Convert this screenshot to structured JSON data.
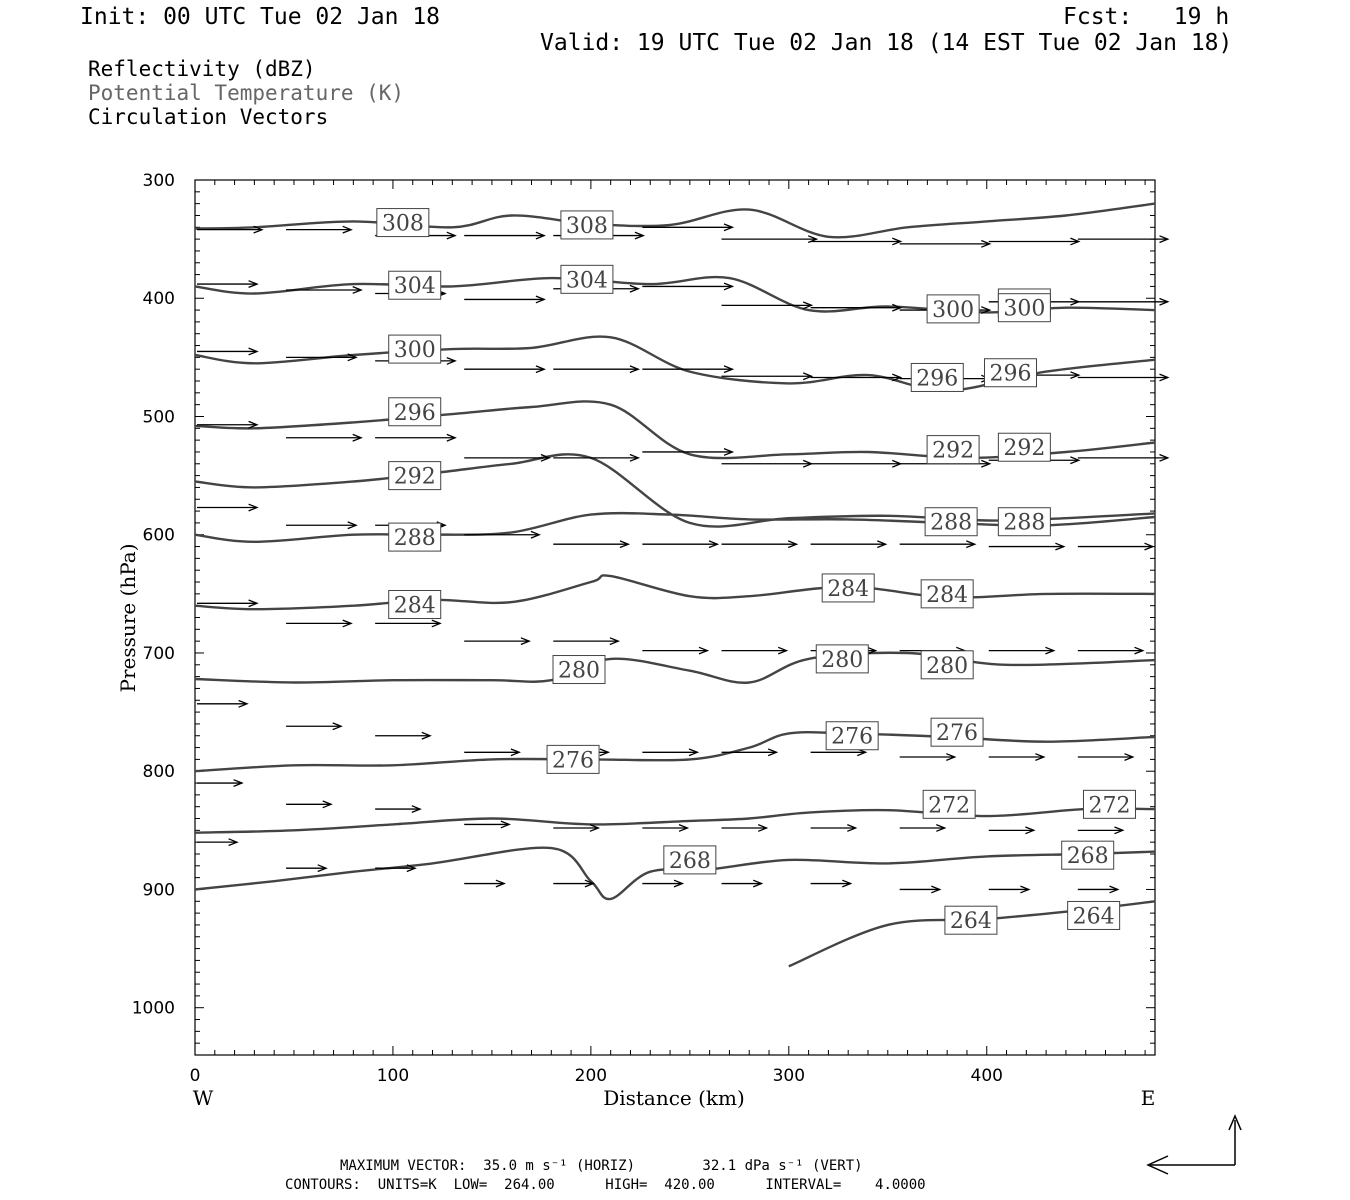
{
  "header": {
    "init": "Init: 00 UTC Tue 02 Jan 18",
    "fcst": "Fcst:   19 h",
    "valid": "Valid: 19 UTC Tue 02 Jan 18 (14 EST Tue 02 Jan 18)"
  },
  "legend": [
    {
      "label": "Reflectivity (dBZ)",
      "color": "#000000"
    },
    {
      "label": "Potential Temperature (K)",
      "color": "#666666"
    },
    {
      "label": "Circulation Vectors",
      "color": "#000000"
    }
  ],
  "footer": {
    "line1": "MAXIMUM VECTOR:  35.0 m s⁻¹ (HORIZ)        32.1 dPa s⁻¹ (VERT)",
    "line2": "CONTOURS:  UNITS=K  LOW=  264.00      HIGH=  420.00      INTERVAL=    4.0000"
  },
  "chart_data": {
    "type": "cross-section",
    "xlabel": "Distance (km)",
    "ylabel": "Pressure (hPa)",
    "xlim": [
      0,
      485
    ],
    "ylim": [
      1040,
      300
    ],
    "x_ticks": [
      0,
      100,
      200,
      300,
      400
    ],
    "y_ticks": [
      300,
      400,
      500,
      600,
      700,
      800,
      900,
      1000
    ],
    "x_end_labels": {
      "left": "W",
      "right": "E"
    },
    "contour_color": "#444444",
    "isentropes": [
      {
        "theta": 308,
        "x": [
          0,
          30,
          80,
          130,
          160,
          200,
          240,
          280,
          320,
          360,
          400,
          440,
          485
        ],
        "p": [
          341,
          340,
          335,
          340,
          330,
          337,
          338,
          325,
          348,
          340,
          335,
          330,
          320
        ],
        "labels": [
          [
            105,
            336
          ],
          [
            198,
            338
          ]
        ]
      },
      {
        "theta": 304,
        "x": [
          0,
          30,
          80,
          130,
          180,
          230,
          270,
          310,
          350,
          400,
          440,
          485
        ],
        "p": [
          390,
          396,
          388,
          390,
          383,
          388,
          383,
          410,
          407,
          412,
          408,
          410
        ],
        "labels": [
          [
            111,
            389
          ],
          [
            198,
            384
          ],
          [
            419,
            404
          ]
        ]
      },
      {
        "theta": 300,
        "x": [
          0,
          30,
          80,
          130,
          170,
          210,
          250,
          300,
          340,
          380,
          430,
          485
        ],
        "p": [
          448,
          455,
          448,
          443,
          442,
          433,
          462,
          472,
          465,
          478,
          462,
          452
        ],
        "labels": [
          [
            111,
            443
          ],
          [
            383,
            409
          ],
          [
            419,
            408
          ]
        ]
      },
      {
        "theta": 296,
        "x": [
          0,
          30,
          80,
          130,
          170,
          210,
          250,
          300,
          340,
          390,
          440,
          485
        ],
        "p": [
          508,
          510,
          505,
          498,
          492,
          490,
          532,
          532,
          530,
          535,
          530,
          522
        ],
        "labels": [
          [
            111,
            496
          ],
          [
            375,
            467
          ],
          [
            412,
            463
          ]
        ]
      },
      {
        "theta": 292,
        "x": [
          0,
          30,
          80,
          120,
          160,
          200,
          250,
          300,
          350,
          400,
          440,
          485
        ],
        "p": [
          555,
          560,
          555,
          548,
          540,
          535,
          590,
          586,
          584,
          588,
          586,
          582
        ],
        "labels": [
          [
            111,
            550
          ],
          [
            383,
            528
          ],
          [
            419,
            526
          ]
        ]
      },
      {
        "theta": 288,
        "x": [
          0,
          30,
          80,
          120,
          160,
          200,
          240,
          280,
          330,
          380,
          430,
          485
        ],
        "p": [
          600,
          606,
          600,
          600,
          598,
          583,
          583,
          587,
          587,
          590,
          592,
          585
        ],
        "labels": [
          [
            111,
            602
          ],
          [
            382,
            589
          ],
          [
            419,
            589
          ]
        ]
      },
      {
        "theta": 284,
        "x": [
          0,
          30,
          80,
          120,
          160,
          200,
          210,
          250,
          280,
          330,
          380,
          430,
          485
        ],
        "p": [
          660,
          663,
          660,
          655,
          657,
          640,
          635,
          652,
          652,
          644,
          653,
          650,
          650
        ],
        "labels": [
          [
            111,
            659
          ],
          [
            330,
            645
          ],
          [
            380,
            650
          ]
        ]
      },
      {
        "theta": 280,
        "x": [
          0,
          50,
          100,
          150,
          180,
          210,
          250,
          280,
          310,
          360,
          410,
          485
        ],
        "p": [
          722,
          725,
          723,
          723,
          723,
          705,
          715,
          725,
          705,
          700,
          710,
          706
        ],
        "labels": [
          [
            194,
            714
          ],
          [
            327,
            705
          ],
          [
            380,
            710
          ]
        ]
      },
      {
        "theta": 276,
        "x": [
          0,
          50,
          100,
          150,
          200,
          250,
          280,
          300,
          330,
          380,
          430,
          485
        ],
        "p": [
          800,
          795,
          795,
          790,
          790,
          790,
          780,
          768,
          768,
          771,
          775,
          771
        ],
        "labels": [
          [
            191,
            790
          ],
          [
            332,
            770
          ],
          [
            385,
            767
          ]
        ]
      },
      {
        "theta": 272,
        "x": [
          0,
          50,
          100,
          150,
          200,
          250,
          280,
          310,
          350,
          400,
          450,
          485
        ],
        "p": [
          852,
          850,
          845,
          840,
          845,
          842,
          840,
          835,
          833,
          838,
          832,
          832
        ],
        "labels": [
          [
            381,
            828
          ],
          [
            462,
            828
          ]
        ]
      },
      {
        "theta": 268,
        "x": [
          0,
          40,
          80,
          120,
          180,
          200,
          210,
          230,
          260,
          300,
          350,
          400,
          450,
          485
        ],
        "p": [
          900,
          893,
          885,
          878,
          865,
          893,
          908,
          885,
          883,
          875,
          878,
          872,
          870,
          868
        ],
        "labels": [
          [
            250,
            875
          ],
          [
            451,
            871
          ]
        ]
      },
      {
        "theta": 264,
        "x": [
          300,
          350,
          400,
          450,
          485
        ],
        "p": [
          965,
          930,
          925,
          917,
          910
        ],
        "labels": [
          [
            392,
            926
          ],
          [
            454,
            922
          ]
        ]
      }
    ],
    "vectors": [
      {
        "x": 0,
        "p": 342,
        "u": 26,
        "w": 0
      },
      {
        "x": 45,
        "p": 342,
        "u": 26,
        "w": 0
      },
      {
        "x": 90,
        "p": 347,
        "u": 32,
        "w": 0
      },
      {
        "x": 135,
        "p": 347,
        "u": 32,
        "w": 0
      },
      {
        "x": 180,
        "p": 347,
        "u": 36,
        "w": 0
      },
      {
        "x": 225,
        "p": 340,
        "u": 36,
        "w": 0
      },
      {
        "x": 265,
        "p": 350,
        "u": 38,
        "w": 0
      },
      {
        "x": 310,
        "p": 352,
        "u": 36,
        "w": 0
      },
      {
        "x": 355,
        "p": 354,
        "u": 36,
        "w": 0
      },
      {
        "x": 400,
        "p": 352,
        "u": 36,
        "w": 0
      },
      {
        "x": 445,
        "p": 350,
        "u": 36,
        "w": 0
      },
      {
        "x": 0,
        "p": 388,
        "u": 24,
        "w": 0
      },
      {
        "x": 45,
        "p": 393,
        "u": 30,
        "w": 0
      },
      {
        "x": 90,
        "p": 396,
        "u": 28,
        "w": 0
      },
      {
        "x": 135,
        "p": 401,
        "u": 32,
        "w": 0
      },
      {
        "x": 180,
        "p": 392,
        "u": 34,
        "w": 0
      },
      {
        "x": 225,
        "p": 390,
        "u": 36,
        "w": 0
      },
      {
        "x": 265,
        "p": 406,
        "u": 36,
        "w": 0
      },
      {
        "x": 310,
        "p": 408,
        "u": 36,
        "w": 0
      },
      {
        "x": 355,
        "p": 410,
        "u": 36,
        "w": 0
      },
      {
        "x": 400,
        "p": 403,
        "u": 36,
        "w": 0
      },
      {
        "x": 445,
        "p": 403,
        "u": 36,
        "w": 0
      },
      {
        "x": 0,
        "p": 445,
        "u": 24,
        "w": 0
      },
      {
        "x": 45,
        "p": 450,
        "u": 28,
        "w": 0
      },
      {
        "x": 90,
        "p": 453,
        "u": 32,
        "w": 0
      },
      {
        "x": 135,
        "p": 460,
        "u": 32,
        "w": 0
      },
      {
        "x": 180,
        "p": 460,
        "u": 34,
        "w": 0
      },
      {
        "x": 225,
        "p": 460,
        "u": 36,
        "w": 0
      },
      {
        "x": 265,
        "p": 466,
        "u": 36,
        "w": 0
      },
      {
        "x": 310,
        "p": 467,
        "u": 36,
        "w": 0
      },
      {
        "x": 355,
        "p": 468,
        "u": 36,
        "w": 0
      },
      {
        "x": 400,
        "p": 465,
        "u": 36,
        "w": 0
      },
      {
        "x": 445,
        "p": 467,
        "u": 36,
        "w": 0
      },
      {
        "x": 0,
        "p": 507,
        "u": 24,
        "w": 0
      },
      {
        "x": 45,
        "p": 518,
        "u": 30,
        "w": 0
      },
      {
        "x": 90,
        "p": 518,
        "u": 32,
        "w": 0
      },
      {
        "x": 135,
        "p": 535,
        "u": 34,
        "w": 0
      },
      {
        "x": 180,
        "p": 535,
        "u": 34,
        "w": 0
      },
      {
        "x": 225,
        "p": 530,
        "u": 36,
        "w": 0
      },
      {
        "x": 265,
        "p": 540,
        "u": 36,
        "w": 0
      },
      {
        "x": 310,
        "p": 540,
        "u": 36,
        "w": 0
      },
      {
        "x": 355,
        "p": 540,
        "u": 36,
        "w": 0
      },
      {
        "x": 400,
        "p": 537,
        "u": 36,
        "w": 0
      },
      {
        "x": 445,
        "p": 535,
        "u": 36,
        "w": 0
      },
      {
        "x": 0,
        "p": 577,
        "u": 24,
        "w": 0
      },
      {
        "x": 45,
        "p": 592,
        "u": 28,
        "w": 0
      },
      {
        "x": 90,
        "p": 592,
        "u": 28,
        "w": 0
      },
      {
        "x": 135,
        "p": 600,
        "u": 30,
        "w": 0
      },
      {
        "x": 180,
        "p": 608,
        "u": 30,
        "w": 0
      },
      {
        "x": 225,
        "p": 608,
        "u": 30,
        "w": 0
      },
      {
        "x": 265,
        "p": 608,
        "u": 30,
        "w": 0
      },
      {
        "x": 310,
        "p": 608,
        "u": 30,
        "w": 0
      },
      {
        "x": 355,
        "p": 608,
        "u": 30,
        "w": 0
      },
      {
        "x": 400,
        "p": 610,
        "u": 30,
        "w": 0
      },
      {
        "x": 445,
        "p": 610,
        "u": 30,
        "w": 0
      },
      {
        "x": 0,
        "p": 658,
        "u": 24,
        "w": 0
      },
      {
        "x": 45,
        "p": 675,
        "u": 26,
        "w": 0
      },
      {
        "x": 90,
        "p": 675,
        "u": 26,
        "w": 0
      },
      {
        "x": 135,
        "p": 690,
        "u": 26,
        "w": 0
      },
      {
        "x": 180,
        "p": 690,
        "u": 26,
        "w": 0
      },
      {
        "x": 225,
        "p": 698,
        "u": 26,
        "w": 0
      },
      {
        "x": 265,
        "p": 698,
        "u": 26,
        "w": 0
      },
      {
        "x": 310,
        "p": 698,
        "u": 26,
        "w": 0
      },
      {
        "x": 355,
        "p": 698,
        "u": 26,
        "w": 0
      },
      {
        "x": 400,
        "p": 698,
        "u": 26,
        "w": 0
      },
      {
        "x": 445,
        "p": 698,
        "u": 26,
        "w": 0
      },
      {
        "x": 0,
        "p": 743,
        "u": 20,
        "w": 0
      },
      {
        "x": 45,
        "p": 762,
        "u": 22,
        "w": 0
      },
      {
        "x": 90,
        "p": 770,
        "u": 22,
        "w": 0
      },
      {
        "x": 135,
        "p": 784,
        "u": 22,
        "w": 0
      },
      {
        "x": 180,
        "p": 784,
        "u": 22,
        "w": 0
      },
      {
        "x": 225,
        "p": 784,
        "u": 22,
        "w": 0
      },
      {
        "x": 265,
        "p": 784,
        "u": 22,
        "w": 0
      },
      {
        "x": 310,
        "p": 784,
        "u": 22,
        "w": 0
      },
      {
        "x": 355,
        "p": 788,
        "u": 22,
        "w": 0
      },
      {
        "x": 400,
        "p": 788,
        "u": 22,
        "w": 0
      },
      {
        "x": 445,
        "p": 788,
        "u": 22,
        "w": 0
      },
      {
        "x": 0,
        "p": 810,
        "u": 18,
        "w": 0
      },
      {
        "x": 45,
        "p": 828,
        "u": 18,
        "w": 0
      },
      {
        "x": 90,
        "p": 832,
        "u": 18,
        "w": 0
      },
      {
        "x": 135,
        "p": 845,
        "u": 18,
        "w": 0
      },
      {
        "x": 180,
        "p": 848,
        "u": 18,
        "w": 0
      },
      {
        "x": 225,
        "p": 848,
        "u": 18,
        "w": 0
      },
      {
        "x": 265,
        "p": 848,
        "u": 18,
        "w": 0
      },
      {
        "x": 310,
        "p": 848,
        "u": 18,
        "w": 0
      },
      {
        "x": 355,
        "p": 848,
        "u": 18,
        "w": 0
      },
      {
        "x": 400,
        "p": 850,
        "u": 18,
        "w": 0
      },
      {
        "x": 445,
        "p": 850,
        "u": 18,
        "w": 0
      },
      {
        "x": 0,
        "p": 860,
        "u": 16,
        "w": 0
      },
      {
        "x": 45,
        "p": 882,
        "u": 16,
        "w": 0
      },
      {
        "x": 90,
        "p": 882,
        "u": 16,
        "w": 0
      },
      {
        "x": 135,
        "p": 895,
        "u": 16,
        "w": 0
      },
      {
        "x": 180,
        "p": 895,
        "u": 16,
        "w": 0
      },
      {
        "x": 225,
        "p": 895,
        "u": 16,
        "w": 0
      },
      {
        "x": 265,
        "p": 895,
        "u": 16,
        "w": 0
      },
      {
        "x": 310,
        "p": 895,
        "u": 16,
        "w": 0
      },
      {
        "x": 355,
        "p": 900,
        "u": 16,
        "w": 0
      },
      {
        "x": 400,
        "p": 900,
        "u": 16,
        "w": 0
      },
      {
        "x": 445,
        "p": 900,
        "u": 16,
        "w": 0
      }
    ]
  }
}
